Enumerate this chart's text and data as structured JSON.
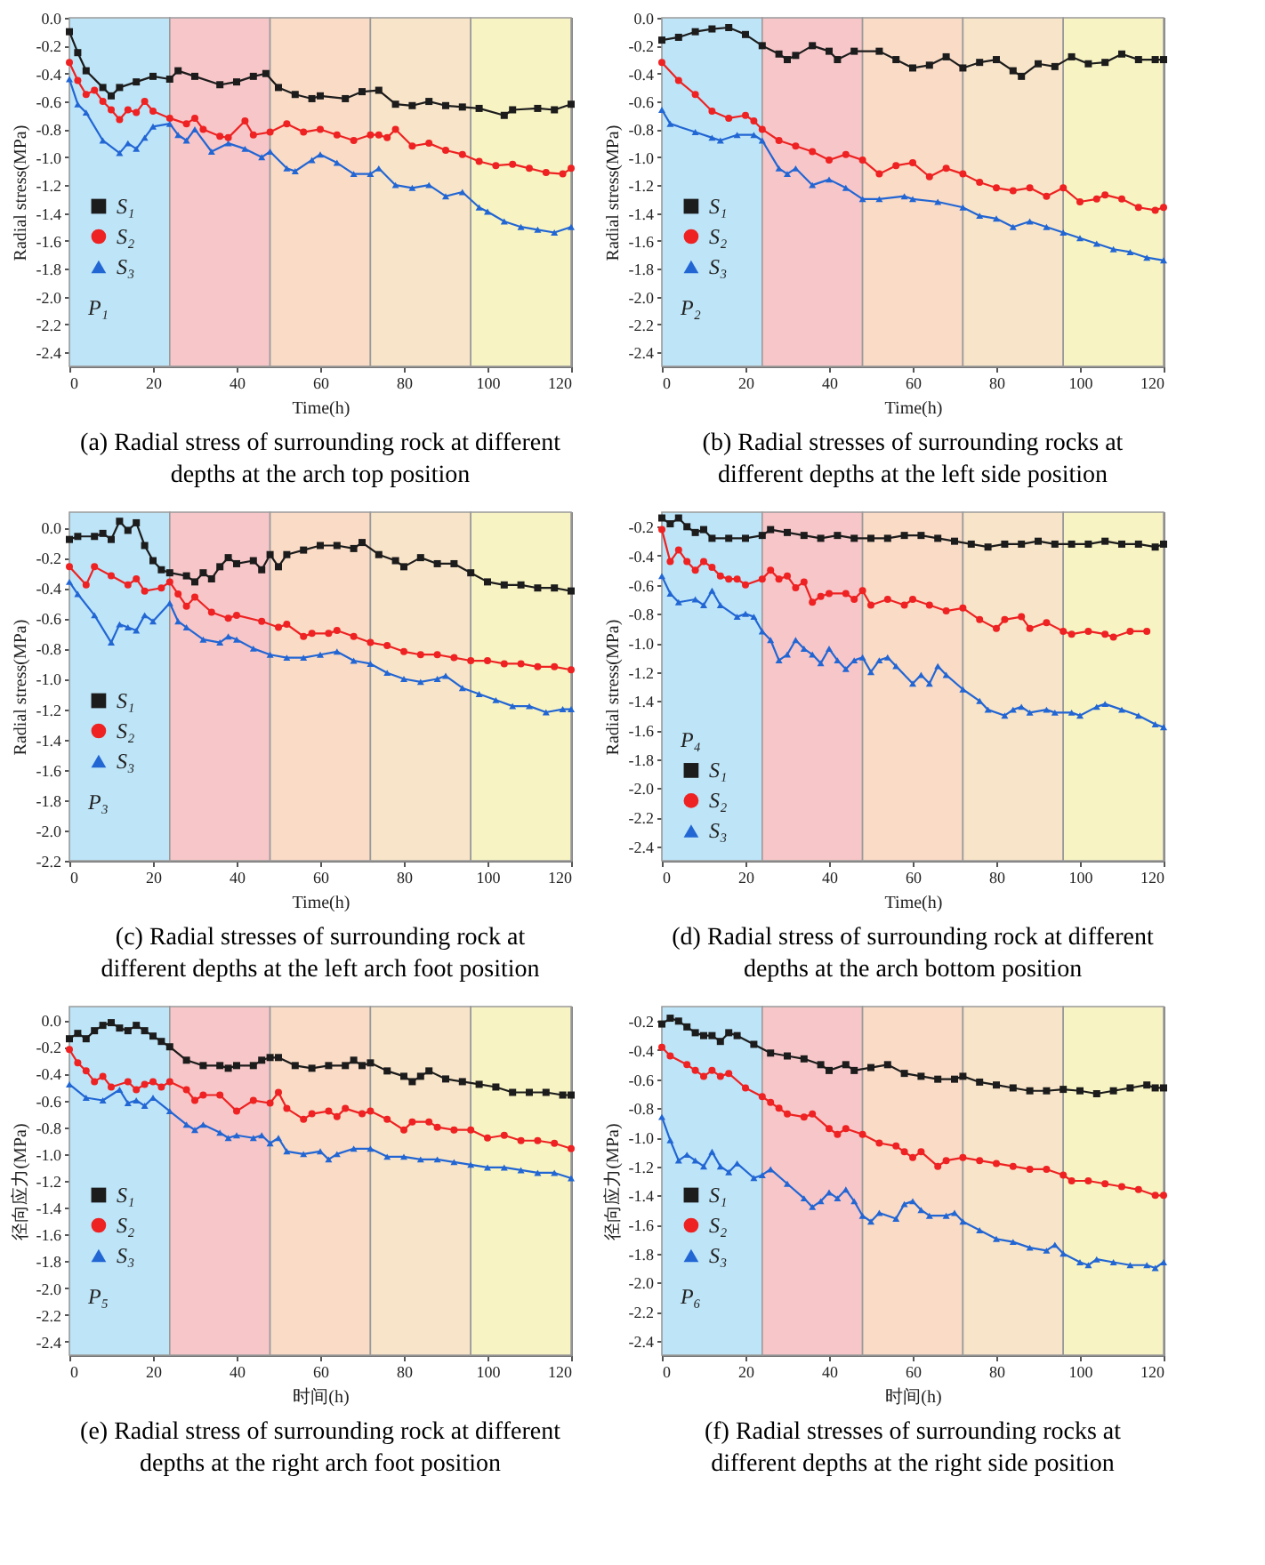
{
  "chart_data": [
    {
      "type": "line",
      "title": "(a) Radial stress of surrounding rock at different depths at the arch top position",
      "xlabel": "Time(h)",
      "ylabel": "Radial stress(MPa)",
      "xlim": [
        0,
        120
      ],
      "xticks": [
        0,
        20,
        40,
        60,
        80,
        100,
        120
      ],
      "ylim": [
        -2.5,
        0.0
      ],
      "yticks": [
        {
          "value": 0,
          "label": "0.0"
        },
        -0.2,
        -0.4,
        -0.6,
        -0.8,
        {
          "value": -1,
          "label": "-1.0"
        },
        -1.2,
        -1.4,
        -1.6,
        -1.8,
        {
          "value": -2,
          "label": "-2.0"
        },
        -2.2,
        -2.4
      ],
      "legend": "left",
      "annotations": [
        "P₁"
      ],
      "bands": [
        {
          "axis": "x",
          "from": 0,
          "to": 24,
          "color": "#bde4f7"
        },
        {
          "axis": "x",
          "from": 24,
          "to": 48,
          "color": "#f7c6c8"
        },
        {
          "axis": "x",
          "from": 48,
          "to": 72,
          "color": "#f9dbc6"
        },
        {
          "axis": "x",
          "from": 72,
          "to": 96,
          "color": "#f8e4c8"
        },
        {
          "axis": "x",
          "from": 96,
          "to": 120,
          "color": "#f7f3c3"
        }
      ],
      "series": [
        {
          "name": "S₁",
          "color": "#1c1c1c",
          "marker": "square",
          "x": [
            0,
            2,
            4,
            8,
            10,
            12,
            16,
            20,
            24,
            26,
            30,
            36,
            40,
            44,
            47,
            50,
            54,
            58,
            60,
            66,
            70,
            74,
            78,
            82,
            86,
            90,
            94,
            98,
            104,
            106,
            112,
            116,
            120
          ],
          "values": [
            -0.1,
            -0.25,
            -0.38,
            -0.5,
            -0.56,
            -0.5,
            -0.46,
            -0.42,
            -0.44,
            -0.38,
            -0.42,
            -0.48,
            -0.46,
            -0.42,
            -0.4,
            -0.5,
            -0.55,
            -0.58,
            -0.56,
            -0.58,
            -0.53,
            -0.52,
            -0.62,
            -0.63,
            -0.6,
            -0.63,
            -0.64,
            -0.65,
            -0.7,
            -0.66,
            -0.65,
            -0.66,
            -0.62
          ]
        },
        {
          "name": "S₂",
          "color": "#ee2222",
          "marker": "circle",
          "x": [
            0,
            2,
            4,
            6,
            8,
            10,
            12,
            14,
            16,
            18,
            20,
            24,
            28,
            30,
            32,
            36,
            38,
            42,
            44,
            48,
            52,
            56,
            60,
            64,
            68,
            72,
            74,
            76,
            78,
            82,
            86,
            90,
            94,
            98,
            102,
            106,
            110,
            114,
            118,
            120
          ],
          "values": [
            -0.32,
            -0.45,
            -0.55,
            -0.52,
            -0.6,
            -0.66,
            -0.73,
            -0.66,
            -0.68,
            -0.6,
            -0.67,
            -0.72,
            -0.76,
            -0.72,
            -0.8,
            -0.85,
            -0.86,
            -0.74,
            -0.84,
            -0.82,
            -0.76,
            -0.82,
            -0.8,
            -0.84,
            -0.88,
            -0.84,
            -0.84,
            -0.86,
            -0.8,
            -0.92,
            -0.9,
            -0.95,
            -0.98,
            -1.03,
            -1.06,
            -1.05,
            -1.08,
            -1.11,
            -1.12,
            -1.08
          ]
        },
        {
          "name": "S₃",
          "color": "#2266d4",
          "marker": "triangle",
          "x": [
            0,
            2,
            4,
            8,
            12,
            14,
            16,
            18,
            20,
            24,
            26,
            28,
            30,
            34,
            38,
            42,
            46,
            48,
            52,
            54,
            58,
            60,
            64,
            68,
            72,
            74,
            78,
            82,
            86,
            90,
            94,
            98,
            100,
            104,
            108,
            112,
            116,
            120
          ],
          "values": [
            -0.44,
            -0.62,
            -0.68,
            -0.88,
            -0.97,
            -0.9,
            -0.94,
            -0.86,
            -0.78,
            -0.76,
            -0.84,
            -0.88,
            -0.8,
            -0.96,
            -0.9,
            -0.94,
            -1.0,
            -0.96,
            -1.08,
            -1.1,
            -1.02,
            -0.98,
            -1.04,
            -1.12,
            -1.12,
            -1.08,
            -1.2,
            -1.22,
            -1.2,
            -1.28,
            -1.25,
            -1.36,
            -1.39,
            -1.46,
            -1.5,
            -1.52,
            -1.54,
            -1.5
          ]
        }
      ]
    },
    {
      "type": "line",
      "title": "(b) Radial stresses of surrounding rocks at different depths at the left side position",
      "xlabel": "Time(h)",
      "ylabel": "Radial stress(MPa)",
      "xlim": [
        0,
        120
      ],
      "xticks": [
        0,
        20,
        40,
        60,
        80,
        100,
        120
      ],
      "ylim": [
        -2.5,
        0.0
      ],
      "yticks": [
        {
          "value": 0,
          "label": "0.0"
        },
        -0.2,
        -0.4,
        -0.6,
        -0.8,
        {
          "value": -1,
          "label": "-1.0"
        },
        -1.2,
        -1.4,
        -1.6,
        -1.8,
        {
          "value": -2,
          "label": "-2.0"
        },
        -2.2,
        -2.4
      ],
      "legend": "left",
      "annotations": [
        "P₂"
      ],
      "bands": [
        {
          "axis": "x",
          "from": 0,
          "to": 24,
          "color": "#bde4f7"
        },
        {
          "axis": "x",
          "from": 24,
          "to": 48,
          "color": "#f7c6c8"
        },
        {
          "axis": "x",
          "from": 48,
          "to": 72,
          "color": "#f9dbc6"
        },
        {
          "axis": "x",
          "from": 72,
          "to": 96,
          "color": "#f8e4c8"
        },
        {
          "axis": "x",
          "from": 96,
          "to": 120,
          "color": "#f7f3c3"
        }
      ],
      "series": [
        {
          "name": "S₁",
          "color": "#1c1c1c",
          "marker": "square",
          "x": [
            0,
            4,
            8,
            12,
            16,
            20,
            24,
            28,
            30,
            32,
            36,
            40,
            42,
            46,
            52,
            56,
            60,
            64,
            68,
            72,
            76,
            80,
            84,
            86,
            90,
            94,
            98,
            102,
            106,
            110,
            114,
            118,
            120
          ],
          "values": [
            -0.16,
            -0.14,
            -0.1,
            -0.08,
            -0.07,
            -0.12,
            -0.2,
            -0.26,
            -0.3,
            -0.27,
            -0.2,
            -0.24,
            -0.3,
            -0.24,
            -0.24,
            -0.3,
            -0.36,
            -0.34,
            -0.28,
            -0.36,
            -0.32,
            -0.3,
            -0.38,
            -0.42,
            -0.33,
            -0.35,
            -0.28,
            -0.33,
            -0.32,
            -0.26,
            -0.3,
            -0.3,
            -0.3
          ]
        },
        {
          "name": "S₂",
          "color": "#ee2222",
          "marker": "circle",
          "x": [
            0,
            4,
            8,
            12,
            16,
            20,
            22,
            24,
            28,
            32,
            36,
            40,
            44,
            48,
            52,
            56,
            60,
            64,
            68,
            72,
            76,
            80,
            84,
            88,
            92,
            96,
            100,
            104,
            106,
            110,
            114,
            118,
            120
          ],
          "values": [
            -0.32,
            -0.45,
            -0.55,
            -0.67,
            -0.72,
            -0.7,
            -0.74,
            -0.8,
            -0.88,
            -0.92,
            -0.96,
            -1.02,
            -0.98,
            -1.02,
            -1.12,
            -1.06,
            -1.04,
            -1.14,
            -1.08,
            -1.12,
            -1.18,
            -1.22,
            -1.24,
            -1.22,
            -1.28,
            -1.22,
            -1.32,
            -1.3,
            -1.27,
            -1.3,
            -1.36,
            -1.38,
            -1.36
          ]
        },
        {
          "name": "S₃",
          "color": "#2266d4",
          "marker": "triangle",
          "x": [
            0,
            2,
            8,
            12,
            14,
            18,
            22,
            24,
            28,
            30,
            32,
            36,
            40,
            44,
            48,
            52,
            58,
            60,
            66,
            72,
            76,
            80,
            84,
            88,
            92,
            96,
            100,
            104,
            108,
            112,
            116,
            120
          ],
          "values": [
            -0.66,
            -0.76,
            -0.82,
            -0.86,
            -0.88,
            -0.84,
            -0.84,
            -0.88,
            -1.08,
            -1.12,
            -1.08,
            -1.2,
            -1.16,
            -1.22,
            -1.3,
            -1.3,
            -1.28,
            -1.3,
            -1.32,
            -1.36,
            -1.42,
            -1.44,
            -1.5,
            -1.46,
            -1.5,
            -1.54,
            -1.58,
            -1.62,
            -1.66,
            -1.68,
            -1.72,
            -1.74
          ]
        }
      ]
    },
    {
      "type": "line",
      "title": "(c) Radial stresses of surrounding rock at different depths at the left arch foot position",
      "xlabel": "Time(h)",
      "ylabel": "Radial stress(MPa)",
      "xlim": [
        0,
        120
      ],
      "xticks": [
        0,
        20,
        40,
        60,
        80,
        100,
        120
      ],
      "ylim": [
        -2.2,
        0.1
      ],
      "yticks": [
        {
          "value": 0,
          "label": "0.0"
        },
        -0.2,
        -0.4,
        -0.6,
        -0.8,
        {
          "value": -1,
          "label": "-1.0"
        },
        -1.2,
        -1.4,
        -1.6,
        -1.8,
        {
          "value": -2,
          "label": "-2.0"
        },
        -2.2
      ],
      "legend": "left",
      "annotations": [
        "P₃"
      ],
      "bands": [
        {
          "axis": "x",
          "from": 0,
          "to": 24,
          "color": "#bde4f7"
        },
        {
          "axis": "x",
          "from": 24,
          "to": 48,
          "color": "#f7c6c8"
        },
        {
          "axis": "x",
          "from": 48,
          "to": 72,
          "color": "#f9dbc6"
        },
        {
          "axis": "x",
          "from": 72,
          "to": 96,
          "color": "#f8e4c8"
        },
        {
          "axis": "x",
          "from": 96,
          "to": 120,
          "color": "#f7f3c3"
        }
      ],
      "series": [
        {
          "name": "S₁",
          "color": "#1c1c1c",
          "marker": "square",
          "x": [
            0,
            2,
            6,
            8,
            10,
            12,
            14,
            16,
            18,
            20,
            22,
            24,
            28,
            30,
            32,
            34,
            36,
            38,
            40,
            44,
            46,
            48,
            50,
            52,
            56,
            60,
            64,
            68,
            70,
            74,
            78,
            80,
            84,
            88,
            92,
            96,
            100,
            104,
            108,
            112,
            116,
            120
          ],
          "values": [
            -0.08,
            -0.06,
            -0.06,
            -0.04,
            -0.08,
            0.04,
            -0.02,
            0.03,
            -0.12,
            -0.22,
            -0.28,
            -0.3,
            -0.32,
            -0.36,
            -0.3,
            -0.34,
            -0.26,
            -0.2,
            -0.24,
            -0.22,
            -0.28,
            -0.18,
            -0.26,
            -0.18,
            -0.15,
            -0.12,
            -0.12,
            -0.14,
            -0.1,
            -0.18,
            -0.22,
            -0.26,
            -0.2,
            -0.24,
            -0.24,
            -0.3,
            -0.36,
            -0.38,
            -0.38,
            -0.4,
            -0.4,
            -0.42
          ]
        },
        {
          "name": "S₂",
          "color": "#ee2222",
          "marker": "circle",
          "x": [
            0,
            4,
            6,
            10,
            14,
            16,
            18,
            22,
            24,
            26,
            28,
            30,
            34,
            38,
            40,
            46,
            50,
            52,
            56,
            58,
            62,
            64,
            68,
            72,
            76,
            80,
            84,
            88,
            92,
            96,
            100,
            104,
            108,
            112,
            116,
            120
          ],
          "values": [
            -0.26,
            -0.38,
            -0.26,
            -0.32,
            -0.38,
            -0.34,
            -0.42,
            -0.4,
            -0.36,
            -0.44,
            -0.52,
            -0.46,
            -0.56,
            -0.6,
            -0.58,
            -0.62,
            -0.66,
            -0.64,
            -0.72,
            -0.7,
            -0.7,
            -0.68,
            -0.72,
            -0.76,
            -0.78,
            -0.82,
            -0.84,
            -0.84,
            -0.86,
            -0.88,
            -0.88,
            -0.9,
            -0.9,
            -0.92,
            -0.92,
            -0.94
          ]
        },
        {
          "name": "S₃",
          "color": "#2266d4",
          "marker": "triangle",
          "x": [
            0,
            2,
            6,
            10,
            12,
            14,
            16,
            18,
            20,
            24,
            26,
            28,
            32,
            36,
            38,
            40,
            44,
            48,
            52,
            56,
            60,
            64,
            68,
            72,
            76,
            80,
            84,
            88,
            90,
            94,
            98,
            102,
            106,
            110,
            114,
            118,
            120
          ],
          "values": [
            -0.36,
            -0.44,
            -0.58,
            -0.76,
            -0.64,
            -0.66,
            -0.68,
            -0.58,
            -0.62,
            -0.5,
            -0.62,
            -0.66,
            -0.74,
            -0.76,
            -0.72,
            -0.74,
            -0.8,
            -0.84,
            -0.86,
            -0.86,
            -0.84,
            -0.82,
            -0.88,
            -0.9,
            -0.96,
            -1.0,
            -1.02,
            -1.0,
            -0.98,
            -1.06,
            -1.1,
            -1.14,
            -1.18,
            -1.18,
            -1.22,
            -1.2,
            -1.2
          ]
        }
      ]
    },
    {
      "type": "line",
      "title": "(d) Radial stress of surrounding rock at different depths at the arch bottom position",
      "xlabel": "Time(h)",
      "ylabel": "Radial stress(MPa)",
      "xlim": [
        0,
        120
      ],
      "xticks": [
        0,
        20,
        40,
        60,
        80,
        100,
        120
      ],
      "ylim": [
        -2.5,
        -0.1
      ],
      "yticks": [
        -0.2,
        -0.4,
        -0.6,
        -0.8,
        {
          "value": -1,
          "label": "-1.0"
        },
        -1.2,
        -1.4,
        -1.6,
        -1.8,
        {
          "value": -2,
          "label": "-2.0"
        },
        -2.2,
        -2.4
      ],
      "legend": "bottom left",
      "annotations": [
        "P₄"
      ],
      "bands": [
        {
          "axis": "x",
          "from": 0,
          "to": 24,
          "color": "#bde4f7"
        },
        {
          "axis": "x",
          "from": 24,
          "to": 48,
          "color": "#f7c6c8"
        },
        {
          "axis": "x",
          "from": 48,
          "to": 72,
          "color": "#f9dbc6"
        },
        {
          "axis": "x",
          "from": 72,
          "to": 96,
          "color": "#f8e4c8"
        },
        {
          "axis": "x",
          "from": 96,
          "to": 120,
          "color": "#f7f3c3"
        }
      ],
      "series": [
        {
          "name": "S₁",
          "color": "#1c1c1c",
          "marker": "square",
          "x": [
            0,
            2,
            4,
            6,
            8,
            10,
            12,
            16,
            20,
            24,
            26,
            30,
            34,
            38,
            42,
            46,
            50,
            54,
            58,
            62,
            66,
            70,
            74,
            78,
            82,
            86,
            90,
            94,
            98,
            102,
            106,
            110,
            114,
            118,
            120
          ],
          "values": [
            -0.14,
            -0.18,
            -0.14,
            -0.2,
            -0.24,
            -0.22,
            -0.28,
            -0.28,
            -0.28,
            -0.26,
            -0.22,
            -0.24,
            -0.26,
            -0.28,
            -0.26,
            -0.28,
            -0.28,
            -0.28,
            -0.26,
            -0.26,
            -0.28,
            -0.3,
            -0.32,
            -0.34,
            -0.32,
            -0.32,
            -0.3,
            -0.32,
            -0.32,
            -0.32,
            -0.3,
            -0.32,
            -0.32,
            -0.34,
            -0.32
          ]
        },
        {
          "name": "S₂",
          "color": "#ee2222",
          "marker": "circle",
          "x": [
            0,
            2,
            4,
            6,
            8,
            10,
            12,
            14,
            16,
            18,
            20,
            24,
            26,
            28,
            30,
            32,
            34,
            36,
            38,
            40,
            44,
            46,
            48,
            50,
            54,
            58,
            60,
            64,
            68,
            72,
            76,
            80,
            82,
            86,
            88,
            92,
            96,
            98,
            102,
            106,
            108,
            112,
            116
          ],
          "values": [
            -0.22,
            -0.44,
            -0.36,
            -0.44,
            -0.5,
            -0.44,
            -0.48,
            -0.54,
            -0.56,
            -0.56,
            -0.6,
            -0.56,
            -0.5,
            -0.56,
            -0.54,
            -0.62,
            -0.58,
            -0.72,
            -0.68,
            -0.66,
            -0.66,
            -0.7,
            -0.64,
            -0.74,
            -0.7,
            -0.74,
            -0.7,
            -0.74,
            -0.78,
            -0.76,
            -0.84,
            -0.9,
            -0.84,
            -0.82,
            -0.9,
            -0.86,
            -0.92,
            -0.94,
            -0.92,
            -0.94,
            -0.96,
            -0.92,
            -0.92
          ]
        },
        {
          "name": "S₃",
          "color": "#2266d4",
          "marker": "triangle",
          "x": [
            0,
            2,
            4,
            8,
            10,
            12,
            14,
            18,
            20,
            22,
            24,
            26,
            28,
            30,
            32,
            34,
            36,
            38,
            40,
            42,
            44,
            46,
            48,
            50,
            52,
            54,
            56,
            60,
            62,
            64,
            66,
            68,
            72,
            76,
            78,
            82,
            84,
            86,
            88,
            92,
            94,
            98,
            100,
            104,
            106,
            110,
            114,
            118,
            120
          ],
          "values": [
            -0.54,
            -0.66,
            -0.72,
            -0.7,
            -0.74,
            -0.64,
            -0.74,
            -0.82,
            -0.8,
            -0.82,
            -0.92,
            -0.98,
            -1.12,
            -1.08,
            -0.98,
            -1.04,
            -1.08,
            -1.14,
            -1.04,
            -1.12,
            -1.18,
            -1.12,
            -1.1,
            -1.2,
            -1.12,
            -1.1,
            -1.16,
            -1.28,
            -1.22,
            -1.28,
            -1.16,
            -1.22,
            -1.32,
            -1.4,
            -1.46,
            -1.5,
            -1.46,
            -1.44,
            -1.48,
            -1.46,
            -1.48,
            -1.48,
            -1.5,
            -1.44,
            -1.42,
            -1.46,
            -1.5,
            -1.56,
            -1.58
          ]
        }
      ]
    },
    {
      "type": "line",
      "title": "(e) Radial stress of surrounding rock at different depths at the right arch foot position",
      "xlabel": "时间(h)",
      "ylabel": "径向应力(MPa)",
      "xlim": [
        0,
        120
      ],
      "xticks": [
        0,
        20,
        40,
        60,
        80,
        100,
        120
      ],
      "ylim": [
        -2.5,
        0.1
      ],
      "yticks": [
        {
          "value": 0,
          "label": "0.0"
        },
        -0.2,
        -0.4,
        -0.6,
        -0.8,
        {
          "value": -1,
          "label": "-1.0"
        },
        -1.2,
        -1.4,
        -1.6,
        -1.8,
        {
          "value": -2,
          "label": "-2.0"
        },
        -2.2,
        -2.4
      ],
      "legend": "left",
      "annotations": [
        "P₅"
      ],
      "bands": [
        {
          "axis": "x",
          "from": 0,
          "to": 24,
          "color": "#bde4f7"
        },
        {
          "axis": "x",
          "from": 24,
          "to": 48,
          "color": "#f7c6c8"
        },
        {
          "axis": "x",
          "from": 48,
          "to": 72,
          "color": "#f9dbc6"
        },
        {
          "axis": "x",
          "from": 72,
          "to": 96,
          "color": "#f8e4c8"
        },
        {
          "axis": "x",
          "from": 96,
          "to": 120,
          "color": "#f7f3c3"
        }
      ],
      "series": [
        {
          "name": "S₁",
          "color": "#1c1c1c",
          "marker": "square",
          "x": [
            0,
            2,
            4,
            6,
            8,
            10,
            12,
            14,
            16,
            18,
            20,
            22,
            24,
            28,
            32,
            36,
            38,
            40,
            44,
            46,
            48,
            50,
            54,
            58,
            62,
            66,
            68,
            70,
            72,
            76,
            80,
            82,
            84,
            86,
            90,
            94,
            98,
            102,
            106,
            110,
            114,
            118,
            120
          ],
          "values": [
            -0.14,
            -0.1,
            -0.14,
            -0.08,
            -0.04,
            -0.02,
            -0.06,
            -0.08,
            -0.04,
            -0.08,
            -0.12,
            -0.16,
            -0.2,
            -0.3,
            -0.34,
            -0.34,
            -0.36,
            -0.34,
            -0.34,
            -0.3,
            -0.28,
            -0.28,
            -0.34,
            -0.36,
            -0.34,
            -0.34,
            -0.3,
            -0.34,
            -0.32,
            -0.38,
            -0.42,
            -0.46,
            -0.42,
            -0.38,
            -0.44,
            -0.46,
            -0.48,
            -0.5,
            -0.54,
            -0.54,
            -0.54,
            -0.56,
            -0.56
          ]
        },
        {
          "name": "S₂",
          "color": "#ee2222",
          "marker": "circle",
          "x": [
            0,
            2,
            4,
            6,
            8,
            10,
            14,
            16,
            18,
            20,
            22,
            24,
            28,
            30,
            32,
            36,
            40,
            44,
            48,
            50,
            52,
            56,
            58,
            62,
            64,
            66,
            70,
            72,
            76,
            80,
            82,
            86,
            88,
            92,
            96,
            100,
            104,
            108,
            112,
            116,
            120
          ],
          "values": [
            -0.22,
            -0.32,
            -0.38,
            -0.46,
            -0.42,
            -0.5,
            -0.46,
            -0.52,
            -0.48,
            -0.46,
            -0.5,
            -0.46,
            -0.52,
            -0.6,
            -0.56,
            -0.56,
            -0.68,
            -0.6,
            -0.62,
            -0.54,
            -0.66,
            -0.74,
            -0.7,
            -0.68,
            -0.72,
            -0.66,
            -0.7,
            -0.68,
            -0.74,
            -0.82,
            -0.76,
            -0.76,
            -0.8,
            -0.82,
            -0.82,
            -0.88,
            -0.86,
            -0.9,
            -0.9,
            -0.92,
            -0.96
          ]
        },
        {
          "name": "S₃",
          "color": "#2266d4",
          "marker": "triangle",
          "x": [
            0,
            4,
            8,
            12,
            14,
            16,
            18,
            20,
            24,
            28,
            30,
            32,
            36,
            38,
            40,
            44,
            46,
            48,
            50,
            52,
            56,
            60,
            62,
            64,
            68,
            72,
            76,
            80,
            84,
            88,
            92,
            96,
            100,
            104,
            108,
            112,
            116,
            120
          ],
          "values": [
            -0.48,
            -0.58,
            -0.6,
            -0.52,
            -0.62,
            -0.6,
            -0.64,
            -0.58,
            -0.68,
            -0.78,
            -0.82,
            -0.78,
            -0.84,
            -0.88,
            -0.86,
            -0.88,
            -0.86,
            -0.92,
            -0.88,
            -0.98,
            -1.0,
            -0.98,
            -1.04,
            -1.0,
            -0.96,
            -0.96,
            -1.02,
            -1.02,
            -1.04,
            -1.04,
            -1.06,
            -1.08,
            -1.1,
            -1.1,
            -1.12,
            -1.14,
            -1.14,
            -1.18
          ]
        }
      ]
    },
    {
      "type": "line",
      "title": "(f) Radial stresses of surrounding rocks at different depths at the right side position",
      "xlabel": "时间(h)",
      "ylabel": "径向应力(MPa)",
      "xlim": [
        0,
        120
      ],
      "xticks": [
        0,
        20,
        40,
        60,
        80,
        100,
        120
      ],
      "ylim": [
        -2.5,
        -0.1
      ],
      "yticks": [
        -0.2,
        -0.4,
        -0.6,
        -0.8,
        {
          "value": -1,
          "label": "-1.0"
        },
        -1.2,
        -1.4,
        -1.6,
        -1.8,
        {
          "value": -2,
          "label": "-2.0"
        },
        -2.2,
        -2.4
      ],
      "legend": "left",
      "annotations": [
        "P₆"
      ],
      "bands": [
        {
          "axis": "x",
          "from": 0,
          "to": 24,
          "color": "#bde4f7"
        },
        {
          "axis": "x",
          "from": 24,
          "to": 48,
          "color": "#f7c6c8"
        },
        {
          "axis": "x",
          "from": 48,
          "to": 72,
          "color": "#f9dbc6"
        },
        {
          "axis": "x",
          "from": 72,
          "to": 96,
          "color": "#f8e4c8"
        },
        {
          "axis": "x",
          "from": 96,
          "to": 120,
          "color": "#f7f3c3"
        }
      ],
      "series": [
        {
          "name": "S₁",
          "color": "#1c1c1c",
          "marker": "square",
          "x": [
            0,
            2,
            4,
            6,
            8,
            10,
            12,
            14,
            16,
            18,
            22,
            26,
            30,
            34,
            38,
            40,
            44,
            46,
            50,
            54,
            58,
            62,
            66,
            70,
            72,
            76,
            80,
            84,
            88,
            92,
            96,
            100,
            104,
            108,
            112,
            116,
            118,
            120
          ],
          "values": [
            -0.22,
            -0.18,
            -0.2,
            -0.24,
            -0.28,
            -0.3,
            -0.3,
            -0.34,
            -0.28,
            -0.3,
            -0.36,
            -0.42,
            -0.44,
            -0.46,
            -0.5,
            -0.54,
            -0.5,
            -0.54,
            -0.52,
            -0.5,
            -0.56,
            -0.58,
            -0.6,
            -0.6,
            -0.58,
            -0.62,
            -0.64,
            -0.66,
            -0.68,
            -0.68,
            -0.67,
            -0.68,
            -0.7,
            -0.68,
            -0.66,
            -0.64,
            -0.66,
            -0.66
          ]
        },
        {
          "name": "S₂",
          "color": "#ee2222",
          "marker": "circle",
          "x": [
            0,
            2,
            6,
            8,
            10,
            12,
            14,
            16,
            20,
            24,
            26,
            28,
            30,
            34,
            36,
            40,
            42,
            44,
            48,
            52,
            56,
            58,
            60,
            62,
            66,
            68,
            72,
            76,
            80,
            84,
            88,
            92,
            96,
            98,
            102,
            106,
            110,
            114,
            118,
            120
          ],
          "values": [
            -0.38,
            -0.44,
            -0.5,
            -0.54,
            -0.58,
            -0.54,
            -0.58,
            -0.56,
            -0.66,
            -0.72,
            -0.76,
            -0.8,
            -0.84,
            -0.86,
            -0.84,
            -0.94,
            -0.98,
            -0.94,
            -0.98,
            -1.04,
            -1.06,
            -1.1,
            -1.14,
            -1.1,
            -1.2,
            -1.16,
            -1.14,
            -1.16,
            -1.18,
            -1.2,
            -1.22,
            -1.22,
            -1.26,
            -1.3,
            -1.3,
            -1.32,
            -1.34,
            -1.36,
            -1.4,
            -1.4
          ]
        },
        {
          "name": "S₃",
          "color": "#2266d4",
          "marker": "triangle",
          "x": [
            0,
            2,
            4,
            6,
            8,
            10,
            12,
            14,
            16,
            18,
            22,
            24,
            26,
            30,
            34,
            36,
            38,
            40,
            42,
            44,
            46,
            48,
            50,
            52,
            56,
            58,
            60,
            62,
            64,
            68,
            70,
            72,
            76,
            80,
            84,
            88,
            92,
            94,
            96,
            100,
            102,
            104,
            108,
            112,
            116,
            118,
            120
          ],
          "values": [
            -0.86,
            -1.02,
            -1.16,
            -1.12,
            -1.16,
            -1.2,
            -1.1,
            -1.2,
            -1.24,
            -1.18,
            -1.28,
            -1.26,
            -1.22,
            -1.32,
            -1.42,
            -1.48,
            -1.44,
            -1.38,
            -1.42,
            -1.36,
            -1.44,
            -1.54,
            -1.58,
            -1.52,
            -1.56,
            -1.46,
            -1.44,
            -1.5,
            -1.54,
            -1.54,
            -1.52,
            -1.58,
            -1.64,
            -1.7,
            -1.72,
            -1.76,
            -1.78,
            -1.74,
            -1.8,
            -1.86,
            -1.88,
            -1.84,
            -1.86,
            -1.88,
            -1.88,
            -1.9,
            -1.86
          ]
        }
      ]
    }
  ]
}
